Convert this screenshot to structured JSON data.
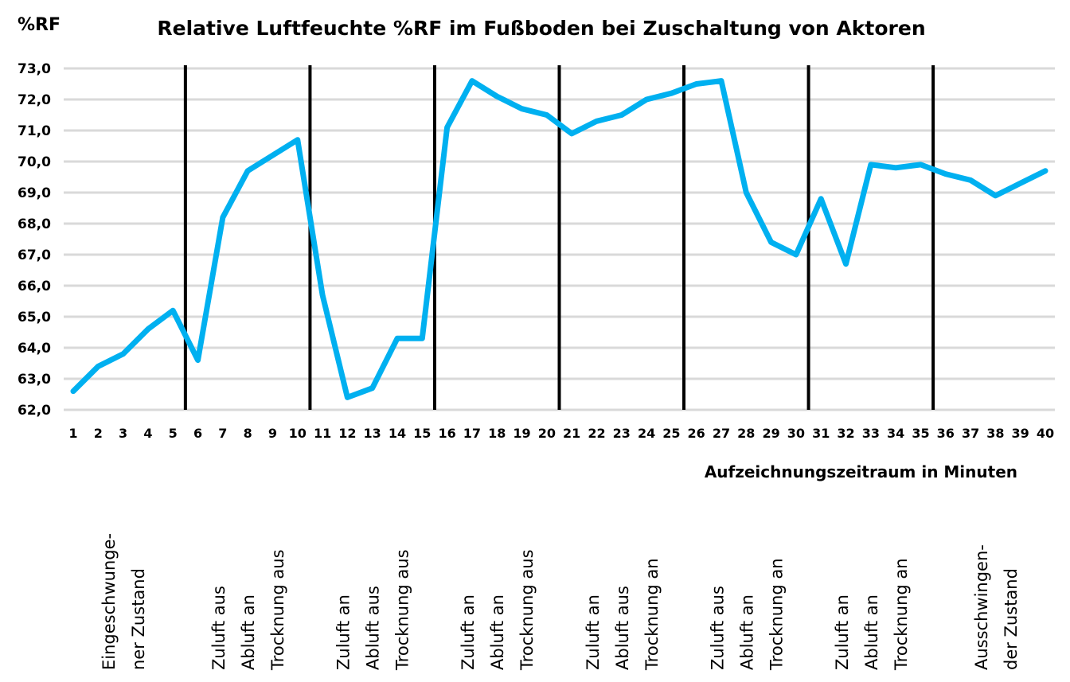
{
  "chart_data": {
    "type": "line",
    "title": "Relative Luftfeuchte %RF im Fußboden bei Zuschaltung von Aktoren",
    "ylabel": "%RF",
    "xlabel": "Aufzeichnungszeitraum in Minuten",
    "ylim": [
      62,
      73
    ],
    "y_ticks": [
      "62,0",
      "63,0",
      "64,0",
      "65,0",
      "66,0",
      "67,0",
      "68,0",
      "69,0",
      "70,0",
      "71,0",
      "72,0",
      "73,0"
    ],
    "y_tick_values": [
      62,
      63,
      64,
      65,
      66,
      67,
      68,
      69,
      70,
      71,
      72,
      73
    ],
    "grid": true,
    "line_color": "#00B0F0",
    "categories": [
      "1",
      "2",
      "3",
      "4",
      "5",
      "6",
      "7",
      "8",
      "9",
      "10",
      "11",
      "12",
      "13",
      "14",
      "15",
      "16",
      "17",
      "18",
      "19",
      "20",
      "21",
      "22",
      "23",
      "24",
      "25",
      "26",
      "27",
      "28",
      "29",
      "30",
      "31",
      "32",
      "33",
      "34",
      "35",
      "36",
      "37",
      "38",
      "39",
      "40"
    ],
    "series": [
      {
        "name": "%RF",
        "values": [
          62.6,
          63.4,
          63.8,
          64.6,
          65.2,
          63.6,
          68.2,
          69.7,
          70.2,
          70.7,
          65.7,
          62.4,
          62.7,
          64.3,
          64.3,
          71.1,
          72.6,
          72.1,
          71.7,
          71.5,
          70.9,
          71.3,
          71.5,
          72.0,
          72.2,
          72.5,
          72.6,
          69.0,
          67.4,
          67.0,
          68.8,
          66.7,
          69.9,
          69.8,
          69.9,
          69.6,
          69.4,
          68.9,
          69.3,
          69.7
        ]
      }
    ],
    "phase_dividers_after_minute": [
      5.5,
      10.5,
      15.5,
      20.5,
      25.5,
      30.5,
      35.5
    ],
    "phases": [
      {
        "lines": [
          "Eingeschwunge-",
          "ner Zustand"
        ],
        "center_minute": 3
      },
      {
        "lines": [
          "Zuluft aus",
          "Abluft an",
          "Trocknung aus"
        ],
        "center_minute": 8
      },
      {
        "lines": [
          "Zuluft an",
          "Abluft aus",
          "Trocknung aus"
        ],
        "center_minute": 13
      },
      {
        "lines": [
          "Zuluft an",
          "Abluft an",
          "Trocknung aus"
        ],
        "center_minute": 18
      },
      {
        "lines": [
          "Zuluft an",
          "Abluft aus",
          "Trocknung an"
        ],
        "center_minute": 23
      },
      {
        "lines": [
          "Zuluft aus",
          "Abluft an",
          "Trocknung an"
        ],
        "center_minute": 28
      },
      {
        "lines": [
          "Zuluft an",
          "Abluft an",
          "Trocknung an"
        ],
        "center_minute": 33
      },
      {
        "lines": [
          "Ausschwingen-",
          "der Zustand"
        ],
        "center_minute": 38
      }
    ]
  }
}
